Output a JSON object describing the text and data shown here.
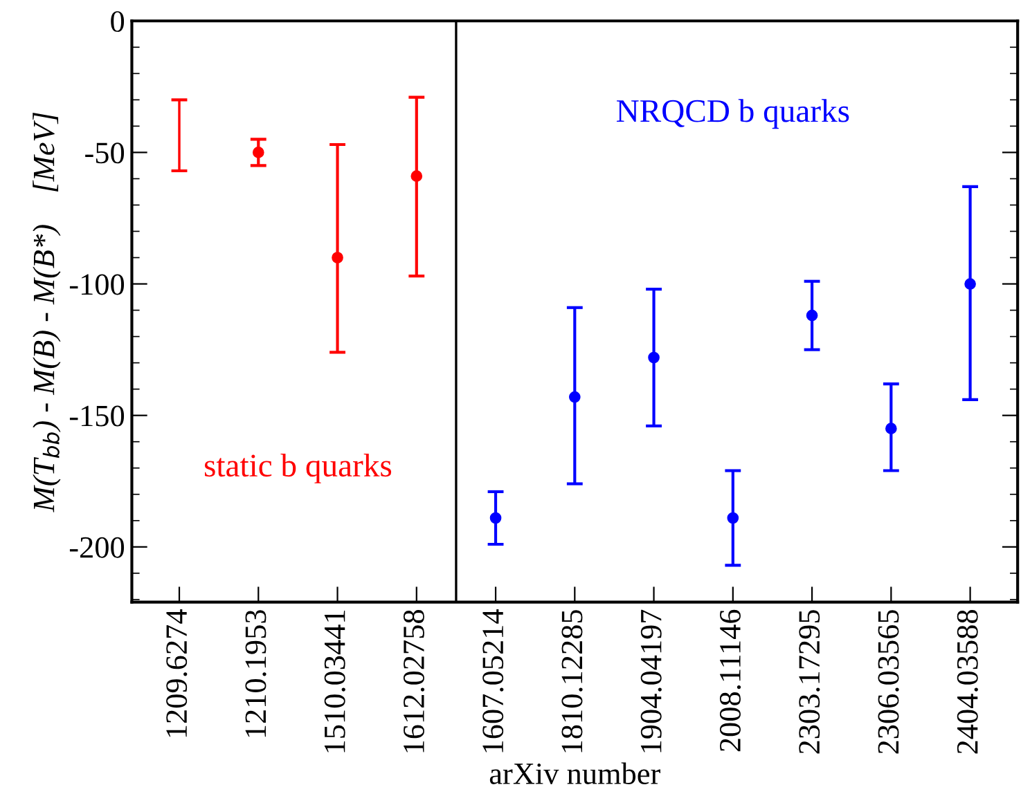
{
  "chart_data": {
    "type": "scatter",
    "xlabel": "arXiv number",
    "ylabel": "M(T$_{bb}$) - M(B) - M(B*)    [MeV]",
    "categories": [
      "1209.6274",
      "1210.1953",
      "1510.03441",
      "1612.02758",
      "1607.05214",
      "1810.12285",
      "1904.04197",
      "2008.11146",
      "2303.17295",
      "2306.03565",
      "2404.03588"
    ],
    "series": [
      {
        "type": "bar",
        "color": "#ff0000",
        "values": [
          27,
          null,
          null,
          null,
          null,
          null,
          null,
          null,
          null,
          null,
          null
        ],
        "base": [
          -57,
          null,
          null,
          null,
          null,
          null,
          null,
          null,
          null,
          null,
          null
        ]
      },
      {
        "color": "#ff0000",
        "values": [
          null,
          -50,
          -90,
          -59,
          null,
          null,
          null,
          null,
          null,
          null,
          null
        ],
        "errors": [
          null,
          [
            -55,
            -45
          ],
          [
            -126,
            -47
          ],
          [
            -97,
            -29
          ],
          null,
          null,
          null,
          null,
          null,
          null,
          null
        ]
      },
      {
        "color": "#0000ff",
        "values": [
          null,
          null,
          null,
          null,
          -189,
          -143,
          -128,
          -189,
          -112,
          -155,
          -100
        ],
        "errors": [
          null,
          null,
          null,
          null,
          [
            -199,
            -179
          ],
          [
            -176,
            -109
          ],
          [
            -154,
            -102
          ],
          [
            -207,
            -171
          ],
          [
            -125,
            -99
          ],
          [
            -171,
            -138
          ],
          [
            -144,
            -63
          ]
        ]
      }
    ],
    "ylim": [
      -221,
      0
    ],
    "yticks": [
      {
        "value": -200,
        "label": "-200"
      },
      {
        "value": -150,
        "label": "-150"
      },
      {
        "value": -100,
        "label": "-100"
      },
      {
        "value": -50,
        "label": "-50"
      },
      0
    ],
    "marker": "circle",
    "grid": false,
    "legend": false,
    "annotations": [
      "static b quarks",
      "NRQCD b quarks"
    ]
  }
}
